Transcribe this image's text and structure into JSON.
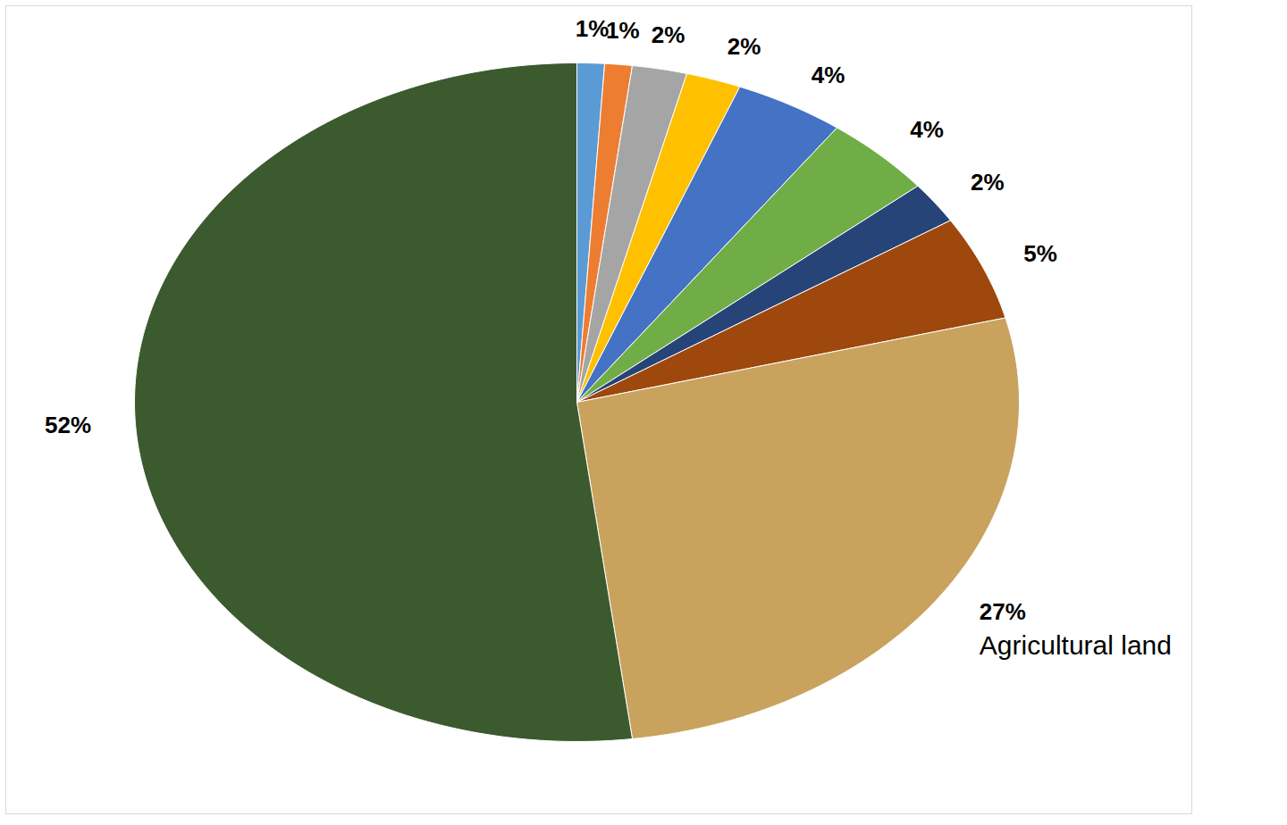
{
  "chart_data": {
    "type": "pie",
    "categories": [
      null,
      null,
      null,
      null,
      null,
      null,
      null,
      null,
      "Agricultural land",
      null
    ],
    "values": [
      1,
      1,
      2,
      2,
      4,
      4,
      2,
      5,
      27,
      52
    ],
    "value_labels": [
      "1%",
      "1%",
      "2%",
      "2%",
      "4%",
      "4%",
      "2%",
      "5%",
      "27%",
      "52%"
    ],
    "colors": [
      "#5b9bd5",
      "#ed7d31",
      "#a5a5a5",
      "#ffc000",
      "#4472c4",
      "#70ad47",
      "#264478",
      "#9e480e",
      "#c9a25e",
      "#3b5a2e"
    ],
    "data_labels": true
  }
}
